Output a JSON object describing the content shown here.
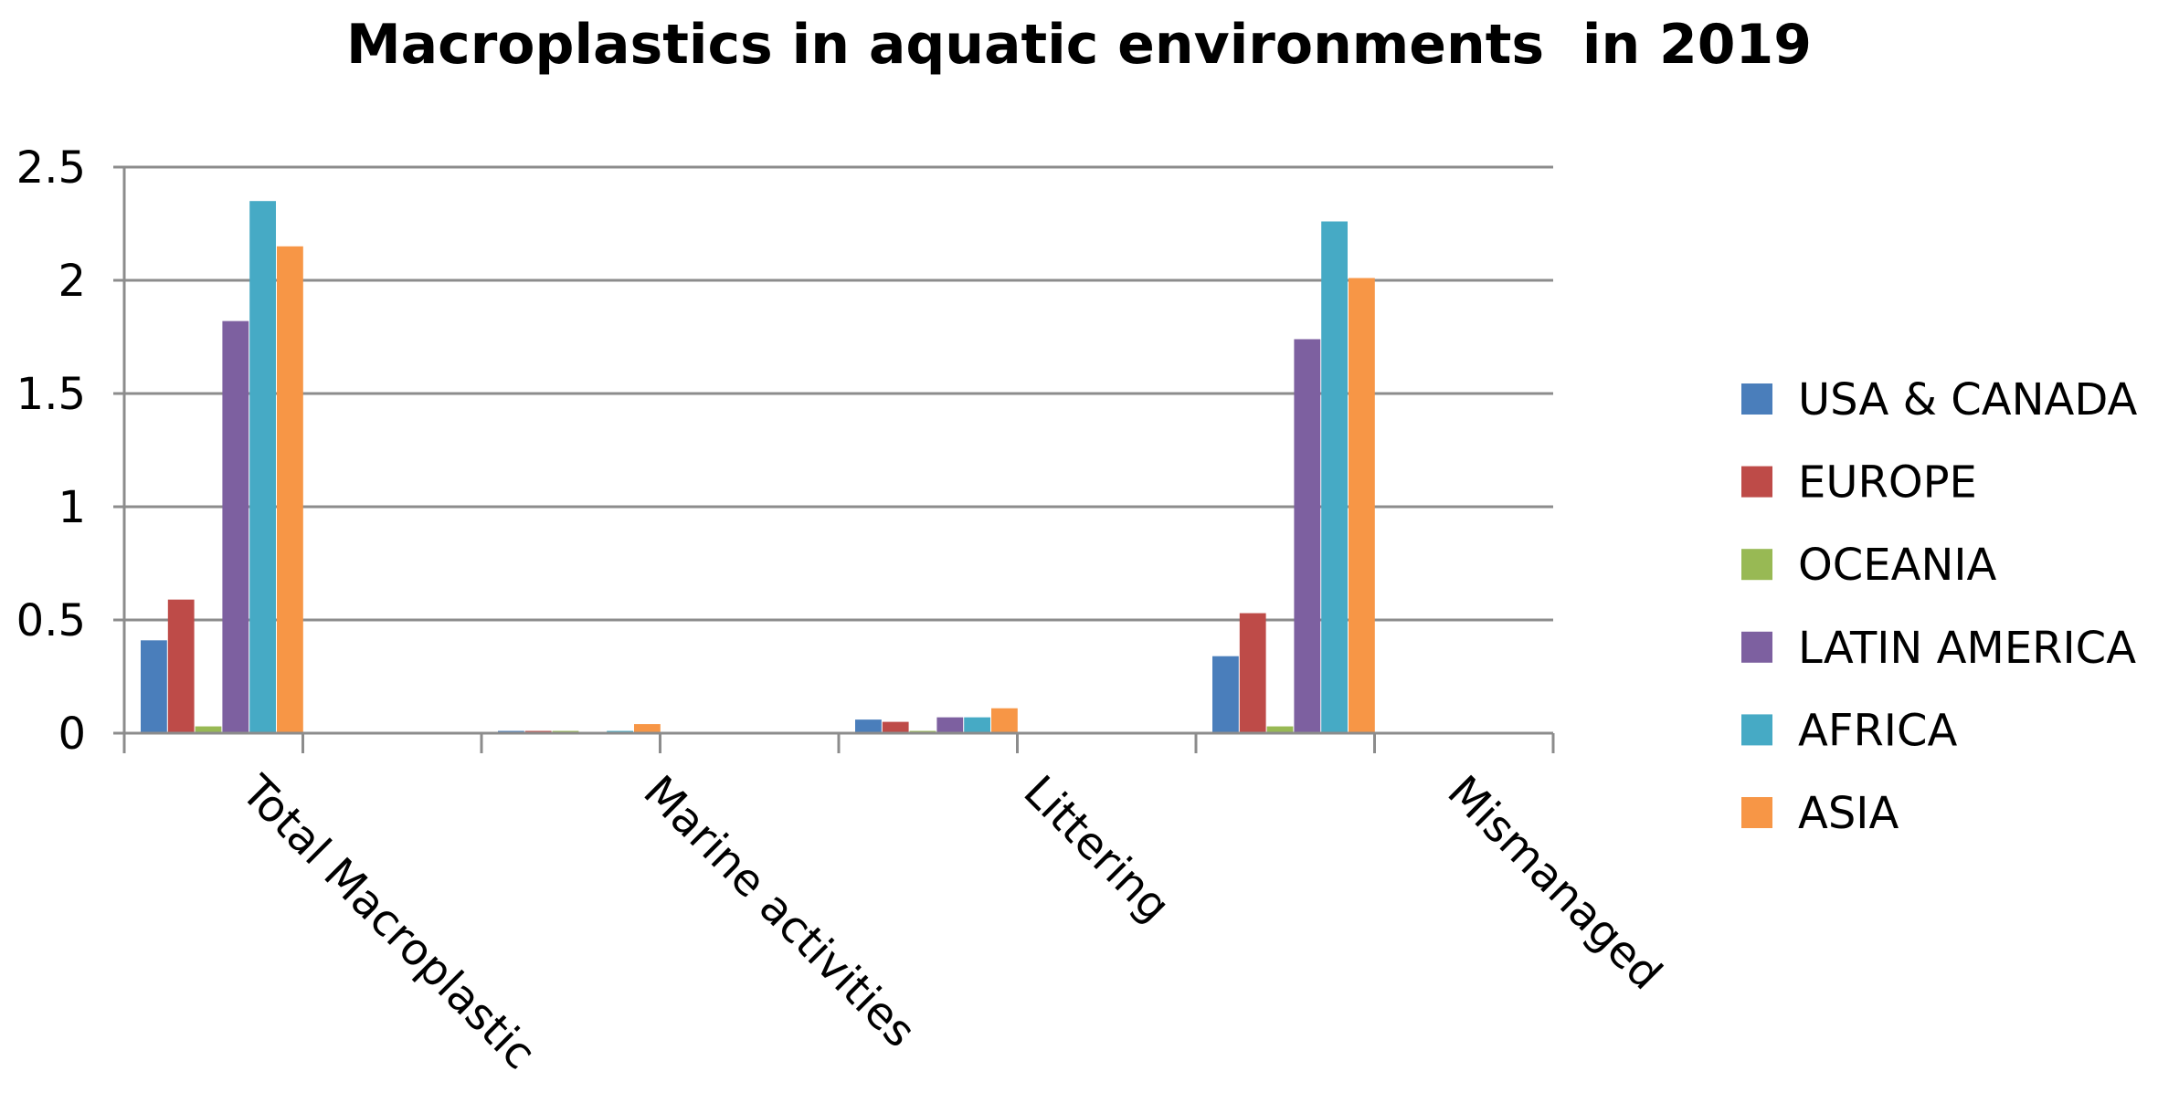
{
  "chart_data": {
    "type": "bar",
    "title": "Macroplastics in aquatic environments  in 2019",
    "xlabel": "",
    "ylabel": "",
    "categories": [
      "Total Macroplastic",
      "Marine activities",
      "Littering",
      "Mismanaged"
    ],
    "ylim": [
      0,
      2.5
    ],
    "yticks": [
      "0",
      "0.5",
      "1",
      "1.5",
      "2",
      "2.5"
    ],
    "grid": true,
    "legend_position": "right",
    "series": [
      {
        "name": "USA & CANADA",
        "color": "#4a7ebb",
        "values": [
          0.41,
          0.01,
          0.06,
          0.34
        ]
      },
      {
        "name": "EUROPE",
        "color": "#be4b48",
        "values": [
          0.59,
          0.01,
          0.05,
          0.53
        ]
      },
      {
        "name": "OCEANIA",
        "color": "#98b954",
        "values": [
          0.03,
          0.01,
          0.01,
          0.03
        ]
      },
      {
        "name": "LATIN AMERICA",
        "color": "#7d60a0",
        "values": [
          1.82,
          0.0,
          0.07,
          1.74
        ]
      },
      {
        "name": "AFRICA",
        "color": "#46aac5",
        "values": [
          2.35,
          0.01,
          0.07,
          2.26
        ]
      },
      {
        "name": "ASIA",
        "color": "#f79646",
        "values": [
          2.15,
          0.04,
          0.11,
          2.01
        ]
      }
    ]
  }
}
